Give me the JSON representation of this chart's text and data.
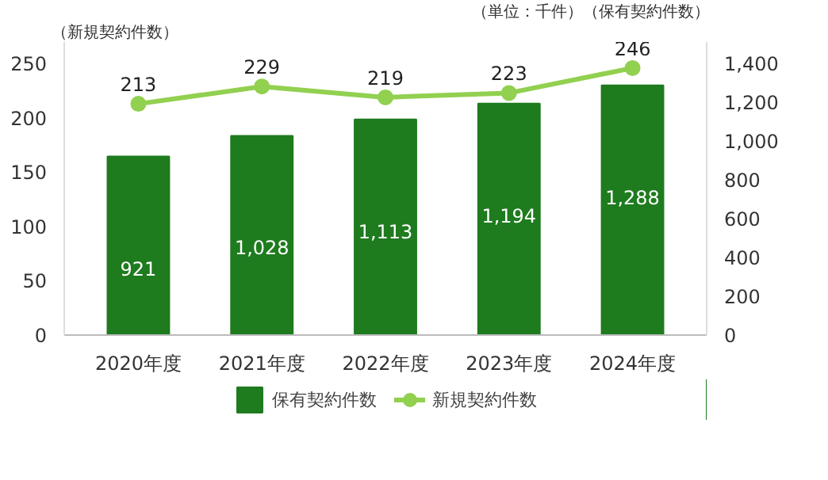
{
  "chart_data": {
    "type": "bar",
    "ylabel": "（新規契約件数）",
    "y2label": "（単位：千件）（保有契約件数）",
    "categories": [
      "2020年度",
      "2021年度",
      "2022年度",
      "2023年度",
      "2024年度"
    ],
    "series": [
      {
        "name": "保有契約件数",
        "axis": "y2",
        "color": "#1e7b1e",
        "values": [
          921,
          1028,
          1113,
          1194,
          1288
        ],
        "value_labels": [
          "921",
          "1,028",
          "1,113",
          "1,194",
          "1,288"
        ]
      },
      {
        "name": "新規契約件数",
        "type": "line",
        "color": "#92d050",
        "values": [
          213,
          229,
          219,
          223,
          246
        ],
        "value_labels": [
          "213",
          "229",
          "219",
          "223",
          "246"
        ]
      }
    ],
    "ylim": [
      0,
      270
    ],
    "yticks": [
      0,
      50,
      100,
      150,
      200,
      250
    ],
    "y2lim": [
      0,
      1512
    ],
    "y2ticks": [
      0,
      {
        "value": 200,
        "label": "200"
      },
      {
        "value": 400,
        "label": "400"
      },
      {
        "value": 600,
        "label": "600"
      },
      {
        "value": 800,
        "label": "800"
      },
      {
        "value": 1000,
        "label": "1,000"
      },
      {
        "value": 1200,
        "label": "1,200"
      },
      {
        "value": 1400,
        "label": "1,400"
      }
    ],
    "legend": "bottom",
    "marker": "circle",
    "line_style": "solid",
    "grid": false
  }
}
